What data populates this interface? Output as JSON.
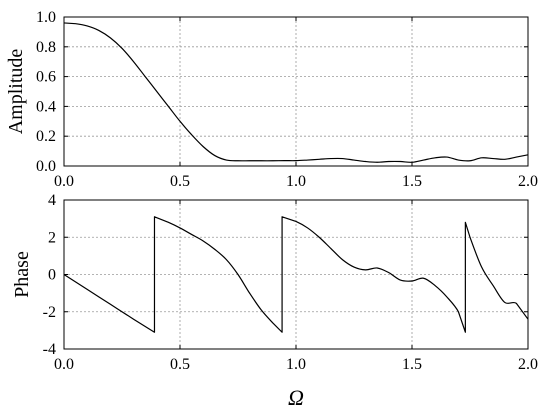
{
  "chart_data": [
    {
      "type": "line",
      "title": "",
      "xlabel": "",
      "ylabel": "Amplitude",
      "xlim": [
        0.0,
        2.0
      ],
      "ylim": [
        0.0,
        1.0
      ],
      "grid": true,
      "x_ticks": [
        "0.0",
        "0.5",
        "1.0",
        "1.5",
        "2.0"
      ],
      "y_ticks": [
        "0.0",
        "0.2",
        "0.4",
        "0.6",
        "0.8",
        "1.0"
      ],
      "x_tick_values": [
        0.0,
        0.5,
        1.0,
        1.5,
        2.0
      ],
      "y_tick_values": [
        0.0,
        0.2,
        0.4,
        0.6,
        0.8,
        1.0
      ],
      "series": [
        {
          "x": [
            0.0,
            0.05,
            0.1,
            0.15,
            0.2,
            0.25,
            0.3,
            0.35,
            0.4,
            0.45,
            0.5,
            0.55,
            0.6,
            0.65,
            0.7,
            0.75,
            0.8,
            0.85,
            0.9,
            0.95,
            1.0,
            1.05,
            1.1,
            1.15,
            1.2,
            1.25,
            1.3,
            1.35,
            1.4,
            1.45,
            1.5,
            1.55,
            1.6,
            1.65,
            1.7,
            1.75,
            1.8,
            1.85,
            1.9,
            1.95,
            2.0
          ],
          "y": [
            0.96,
            0.955,
            0.94,
            0.91,
            0.86,
            0.79,
            0.7,
            0.6,
            0.5,
            0.4,
            0.3,
            0.21,
            0.13,
            0.07,
            0.04,
            0.035,
            0.035,
            0.035,
            0.035,
            0.036,
            0.036,
            0.04,
            0.045,
            0.05,
            0.05,
            0.04,
            0.03,
            0.025,
            0.03,
            0.03,
            0.025,
            0.04,
            0.055,
            0.06,
            0.04,
            0.035,
            0.055,
            0.05,
            0.045,
            0.06,
            0.075
          ]
        }
      ]
    },
    {
      "type": "line",
      "title": "",
      "xlabel": "Ω",
      "ylabel": "Phase",
      "xlim": [
        0.0,
        2.0
      ],
      "ylim": [
        -4,
        4
      ],
      "grid": true,
      "x_ticks": [
        "0.0",
        "0.5",
        "1.0",
        "1.5",
        "2.0"
      ],
      "y_ticks": [
        "4",
        "2",
        "0",
        "-2",
        "-4"
      ],
      "x_tick_values": [
        0.0,
        0.5,
        1.0,
        1.5,
        2.0
      ],
      "y_tick_values": [
        4,
        2,
        0,
        -2,
        -4
      ],
      "series": [
        {
          "x": [
            0.0,
            0.1,
            0.2,
            0.3,
            0.39,
            0.39,
            0.45,
            0.5,
            0.55,
            0.6,
            0.65,
            0.7,
            0.75,
            0.8,
            0.85,
            0.9,
            0.94,
            0.94,
            1.0,
            1.05,
            1.1,
            1.15,
            1.2,
            1.25,
            1.3,
            1.35,
            1.4,
            1.45,
            1.5,
            1.55,
            1.6,
            1.65,
            1.7,
            1.73,
            1.73,
            1.75,
            1.8,
            1.85,
            1.9,
            1.95,
            2.0
          ],
          "y": [
            0.0,
            -0.8,
            -1.6,
            -2.4,
            -3.1,
            3.1,
            2.8,
            2.5,
            2.15,
            1.8,
            1.35,
            0.8,
            0.0,
            -1.0,
            -1.9,
            -2.6,
            -3.1,
            3.1,
            2.85,
            2.5,
            2.0,
            1.4,
            0.8,
            0.4,
            0.25,
            0.35,
            0.1,
            -0.3,
            -0.35,
            -0.2,
            -0.6,
            -1.2,
            -2.0,
            -3.1,
            2.8,
            2.0,
            0.4,
            -0.6,
            -1.5,
            -1.55,
            -2.4
          ]
        }
      ]
    }
  ]
}
